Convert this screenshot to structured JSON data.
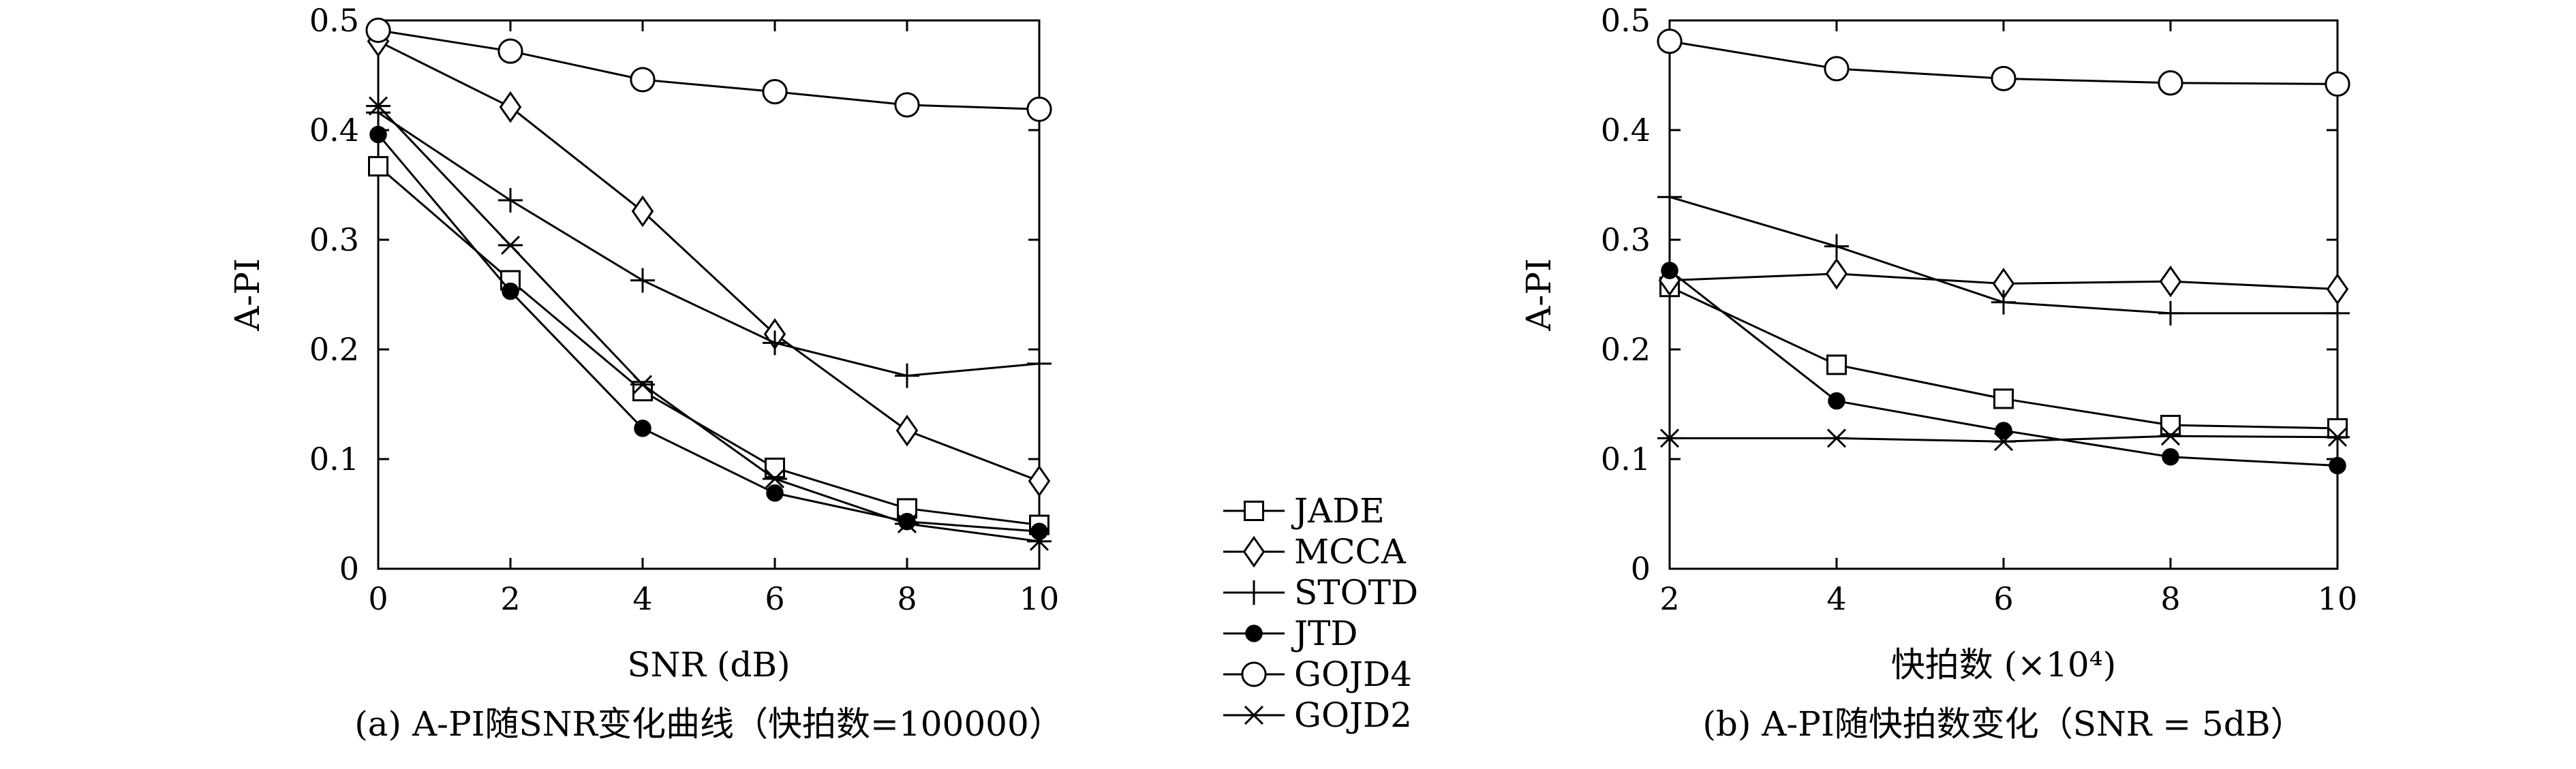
{
  "legend": {
    "labels": [
      "JADE",
      "MCCA",
      "STOTD",
      "JTD",
      "GOJD4",
      "GOJD2"
    ]
  },
  "chart_data": [
    {
      "type": "line",
      "caption": "(a) A-PI随SNR变化曲线（快拍数=100000）",
      "xlabel": "SNR (dB)",
      "ylabel": "A-PI",
      "xlim": [
        0,
        10
      ],
      "ylim": [
        0,
        0.5
      ],
      "xticks": [
        0,
        2,
        4,
        6,
        8,
        10
      ],
      "xtick_labels": [
        "0",
        "2",
        "4",
        "6",
        "8",
        "10"
      ],
      "yticks": [
        0,
        0.1,
        0.2,
        0.3,
        0.4,
        0.5
      ],
      "ytick_labels": [
        "0",
        "0.1",
        "0.2",
        "0.3",
        "0.4",
        "0.5"
      ],
      "grid": false,
      "x": [
        0,
        2,
        4,
        6,
        8,
        10
      ],
      "series": [
        {
          "name": "JADE",
          "marker": "square",
          "values": [
            0.367,
            0.263,
            0.162,
            0.092,
            0.055,
            0.04
          ]
        },
        {
          "name": "MCCA",
          "marker": "diamond",
          "values": [
            0.481,
            0.421,
            0.326,
            0.214,
            0.126,
            0.08
          ]
        },
        {
          "name": "STOTD",
          "marker": "plus",
          "values": [
            0.416,
            0.336,
            0.263,
            0.206,
            0.176,
            0.187
          ]
        },
        {
          "name": "JTD",
          "marker": "dot",
          "values": [
            0.396,
            0.253,
            0.128,
            0.069,
            0.043,
            0.034
          ]
        },
        {
          "name": "GOJD4",
          "marker": "circle",
          "values": [
            0.491,
            0.472,
            0.446,
            0.435,
            0.423,
            0.419
          ]
        },
        {
          "name": "GOJD2",
          "marker": "asterisk",
          "values": [
            0.422,
            0.295,
            0.168,
            0.082,
            0.041,
            0.025
          ]
        }
      ]
    },
    {
      "type": "line",
      "caption": "(b) A-PI随快拍数变化（SNR = 5dB）",
      "xlabel": "快拍数 (×10⁴)",
      "ylabel": "A-PI",
      "xlim": [
        2,
        10
      ],
      "ylim": [
        0,
        0.5
      ],
      "xticks": [
        2,
        4,
        6,
        8,
        10
      ],
      "xtick_labels": [
        "2",
        "4",
        "6",
        "8",
        "10"
      ],
      "yticks": [
        0,
        0.1,
        0.2,
        0.3,
        0.4,
        0.5
      ],
      "ytick_labels": [
        "0",
        "0.1",
        "0.2",
        "0.3",
        "0.4",
        "0.5"
      ],
      "grid": false,
      "x": [
        2,
        4,
        6,
        8,
        10
      ],
      "series": [
        {
          "name": "JADE",
          "marker": "square",
          "values": [
            0.257,
            0.186,
            0.155,
            0.131,
            0.128
          ]
        },
        {
          "name": "MCCA",
          "marker": "diamond",
          "values": [
            0.263,
            0.269,
            0.26,
            0.262,
            0.255
          ]
        },
        {
          "name": "STOTD",
          "marker": "plus",
          "values": [
            0.339,
            0.294,
            0.243,
            0.233,
            0.233
          ]
        },
        {
          "name": "JTD",
          "marker": "dot",
          "values": [
            0.272,
            0.153,
            0.126,
            0.102,
            0.094
          ]
        },
        {
          "name": "GOJD4",
          "marker": "circle",
          "values": [
            0.481,
            0.456,
            0.447,
            0.443,
            0.442
          ]
        },
        {
          "name": "GOJD2",
          "marker": "asterisk",
          "values": [
            0.119,
            0.119,
            0.116,
            0.121,
            0.12
          ]
        }
      ]
    }
  ]
}
